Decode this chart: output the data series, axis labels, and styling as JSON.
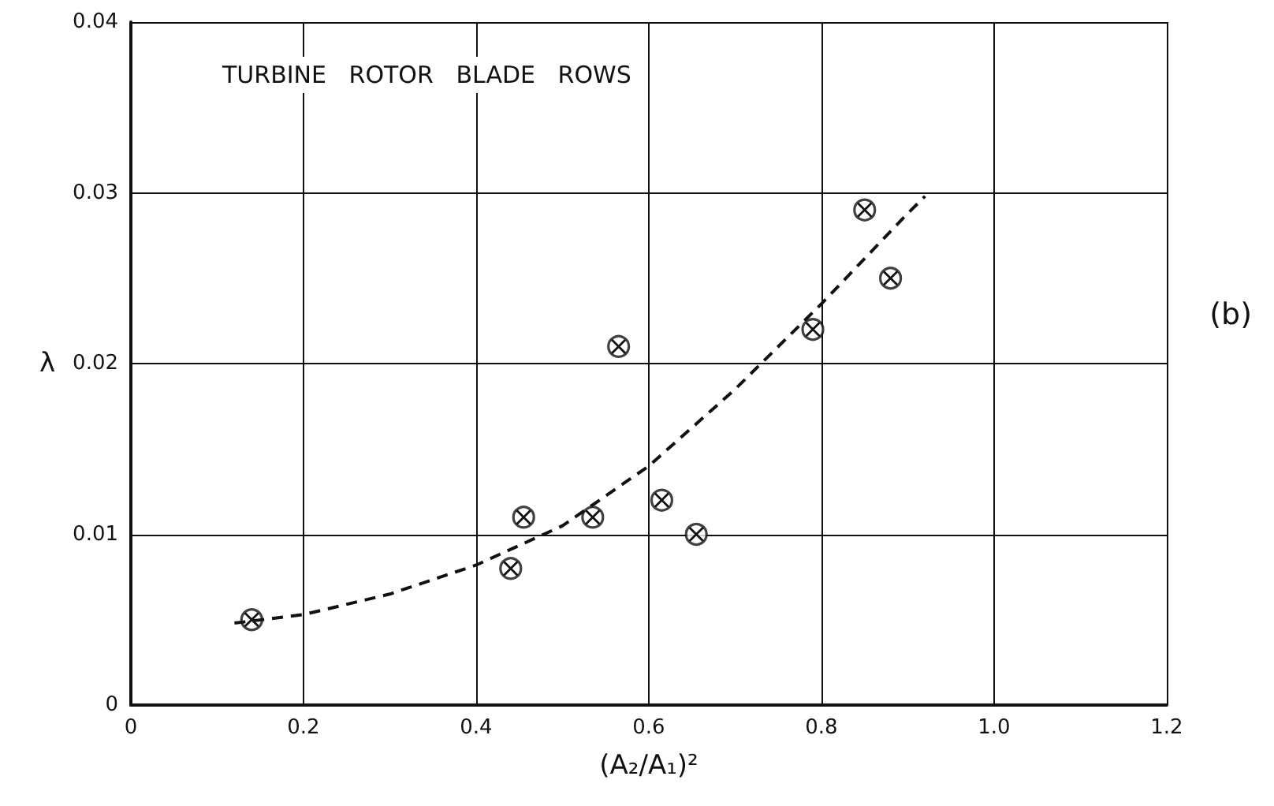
{
  "chart_data": {
    "type": "scatter",
    "xlabel": "(A₂/A₁)²",
    "ylabel": "λ",
    "annotations": [
      "TURBINE   ROTOR   BLADE   ROWS",
      "(b)"
    ],
    "xlim": [
      0,
      1.2
    ],
    "ylim": [
      0,
      0.04
    ],
    "xticks": [
      0,
      0.2,
      0.4,
      0.6,
      0.8,
      {
        "value": 1.0,
        "label": "1.0"
      },
      1.2
    ],
    "yticks": [
      0,
      0.01,
      0.02,
      0.03,
      0.04
    ],
    "grid": true,
    "series": [
      {
        "type": "scatter",
        "color": "#111111",
        "marker": "circle",
        "x": [
          0.14,
          0.44,
          0.455,
          0.535,
          0.565,
          0.615,
          0.655,
          0.79,
          0.85,
          0.88
        ],
        "values": [
          0.005,
          0.008,
          0.011,
          0.011,
          0.021,
          0.012,
          0.01,
          0.022,
          0.029,
          0.025
        ]
      },
      {
        "type": "line",
        "color": "#111111",
        "marker": "none",
        "line_style": "dashed",
        "x": [
          0.12,
          0.2,
          0.3,
          0.4,
          0.5,
          0.6,
          0.7,
          0.8,
          0.9,
          0.92
        ],
        "values": [
          0.0048,
          0.0053,
          0.0065,
          0.0082,
          0.0105,
          0.014,
          0.0185,
          0.0235,
          0.0288,
          0.0298
        ]
      }
    ]
  }
}
